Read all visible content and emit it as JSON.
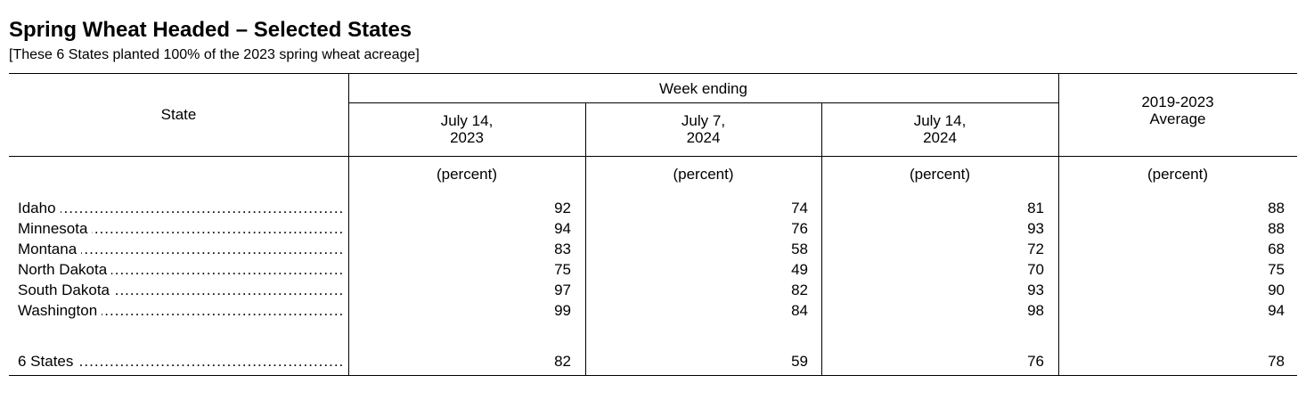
{
  "title": "Spring Wheat Headed – Selected States",
  "subtitle": "[These 6 States planted 100% of the 2023 spring wheat acreage]",
  "table": {
    "state_header": "State",
    "week_ending_header": "Week ending",
    "columns": [
      {
        "line1": "July 14,",
        "line2": "2023"
      },
      {
        "line1": "July 7,",
        "line2": "2024"
      },
      {
        "line1": "July 14,",
        "line2": "2024"
      },
      {
        "line1": "2019-2023",
        "line2": "Average"
      }
    ],
    "unit": "(percent)",
    "rows": [
      {
        "state": "Idaho",
        "values": [
          "92",
          "74",
          "81",
          "88"
        ]
      },
      {
        "state": "Minnesota",
        "values": [
          "94",
          "76",
          "93",
          "88"
        ]
      },
      {
        "state": "Montana",
        "values": [
          "83",
          "58",
          "72",
          "68"
        ]
      },
      {
        "state": "North Dakota",
        "values": [
          "75",
          "49",
          "70",
          "75"
        ]
      },
      {
        "state": "South Dakota",
        "values": [
          "97",
          "82",
          "93",
          "90"
        ]
      },
      {
        "state": "Washington",
        "values": [
          "99",
          "84",
          "98",
          "94"
        ]
      }
    ],
    "total": {
      "state": "6 States",
      "values": [
        "82",
        "59",
        "76",
        "78"
      ]
    }
  }
}
